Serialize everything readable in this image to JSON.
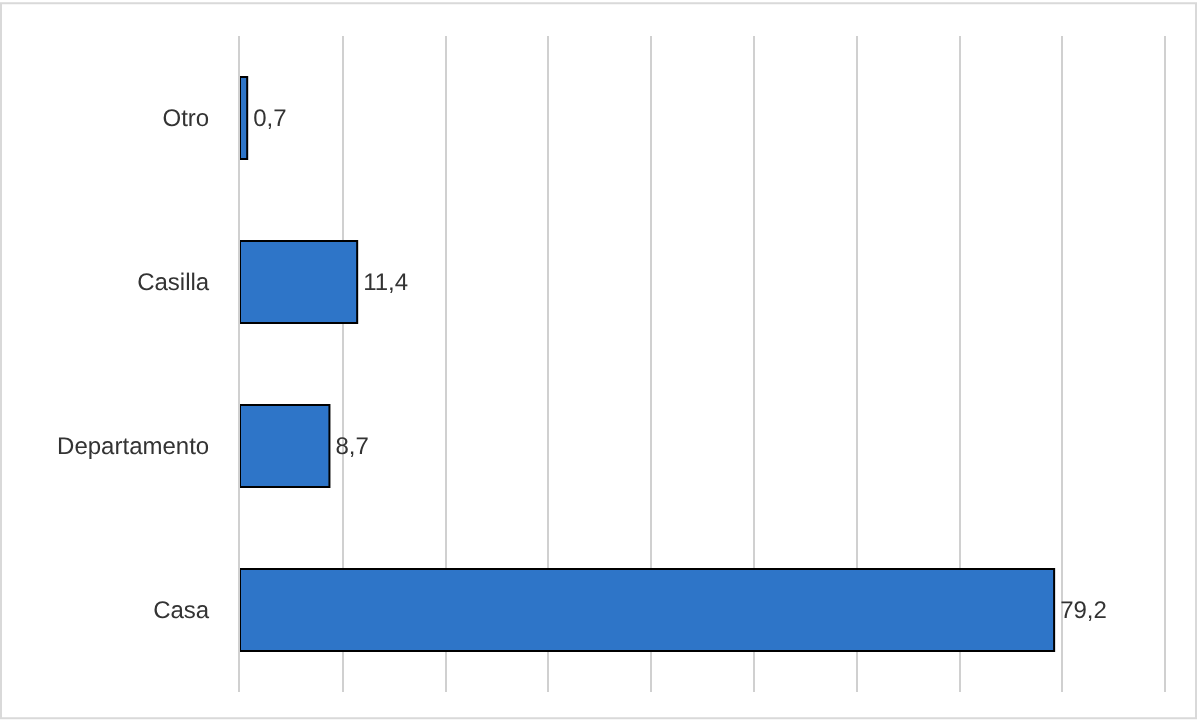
{
  "chart_data": {
    "type": "bar",
    "orientation": "horizontal",
    "categories": [
      "Otro",
      "Casilla",
      "Departamento",
      "Casa"
    ],
    "values": [
      0.7,
      11.4,
      8.7,
      79.2
    ],
    "value_labels": [
      "0,7",
      "11,4",
      "8,7",
      "79,2"
    ],
    "color": "#2e75c8",
    "xlim": [
      0,
      93
    ],
    "xticks": [
      {
        "value": 10,
        "label": null
      },
      {
        "value": 20,
        "label": null
      },
      {
        "value": 30,
        "label": null
      },
      {
        "value": 40,
        "label": null
      },
      {
        "value": 50,
        "label": null
      },
      {
        "value": 60,
        "label": null
      },
      {
        "value": 70,
        "label": null
      },
      {
        "value": 80,
        "label": null
      },
      {
        "value": 90,
        "label": null
      }
    ],
    "grid": "x",
    "tick_labels": "y"
  }
}
